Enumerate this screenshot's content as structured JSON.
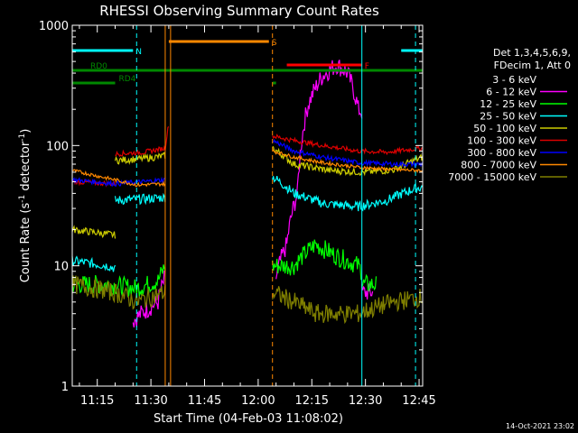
{
  "chart_data": {
    "type": "line",
    "title": "RHESSI Observing Summary Count Rates",
    "xlabel": "Start Time (04-Feb-03 11:08:02)",
    "ylabel_main": "Count Rate (s",
    "ylabel_exp1": "-1",
    "ylabel_mid": " detector",
    "ylabel_exp2": "-1",
    "ylabel_end": ")",
    "ylabel": "Count Rate (s-1 detector-1)",
    "yscale": "log",
    "ylim": [
      1,
      1000
    ],
    "xlim_minutes": [
      0,
      98
    ],
    "y_tick_labels": [
      {
        "v": 1,
        "label": "1"
      },
      {
        "v": 10,
        "label": "10"
      },
      {
        "v": 100,
        "label": "100"
      },
      {
        "v": 1000,
        "label": "1000"
      }
    ],
    "x_tick_labels": [
      {
        "m": 7,
        "label": "11:15"
      },
      {
        "m": 22,
        "label": "11:30"
      },
      {
        "m": 37,
        "label": "11:45"
      },
      {
        "m": 52,
        "label": "12:00"
      },
      {
        "m": 67,
        "label": "12:15"
      },
      {
        "m": 82,
        "label": "12:30"
      },
      {
        "m": 97,
        "label": "12:45"
      }
    ],
    "legend_header": [
      "Det 1,3,4,5,6,9,",
      "FDecim 1, Att 0"
    ],
    "legend_placement": "right",
    "series": [
      {
        "name": "3 - 6 keV",
        "color": "#000000"
      },
      {
        "name": "6 - 12 keV",
        "color": "#ff00ff"
      },
      {
        "name": "12 - 25 keV",
        "color": "#00ff00"
      },
      {
        "name": "25 - 50 keV",
        "color": "#00ffff"
      },
      {
        "name": "50 - 100 keV",
        "color": "#cccc00"
      },
      {
        "name": "100 - 300 keV",
        "color": "#dd0000"
      },
      {
        "name": "300 - 800 keV",
        "color": "#0000ff"
      },
      {
        "name": "800 - 7000 keV",
        "color": "#ff8800"
      },
      {
        "name": "7000 - 15000 keV",
        "color": "#808000"
      }
    ],
    "flags": [
      {
        "label": "N",
        "color": "#00ffff",
        "y_frac": 0.07,
        "segments": [
          [
            0,
            17
          ],
          [
            92,
            98
          ]
        ]
      },
      {
        "label": "S",
        "color": "#ff8800",
        "y_frac": 0.045,
        "segments": [
          [
            27,
            55
          ]
        ]
      },
      {
        "label": "F",
        "color": "#ff0000",
        "y_frac": 0.11,
        "segments": [
          [
            60,
            81
          ]
        ]
      },
      {
        "label": "RD0",
        "color": "#008800",
        "y_frac": 0.125,
        "segments": [
          [
            0,
            98
          ]
        ]
      },
      {
        "label": "RD4",
        "color": "#008800",
        "y_frac": 0.16,
        "segments": [
          [
            0,
            12
          ],
          [
            56,
            57
          ]
        ]
      }
    ],
    "vlines": [
      {
        "m": 18,
        "color": "#00ffff",
        "style": "dashed"
      },
      {
        "m": 26,
        "color": "#ff8800",
        "style": "solid"
      },
      {
        "m": 27.5,
        "color": "#ff8800",
        "style": "solid"
      },
      {
        "m": 56,
        "color": "#ff8800",
        "style": "dashed"
      },
      {
        "m": 81,
        "color": "#00ffff",
        "style": "solid"
      },
      {
        "m": 96,
        "color": "#00ffff",
        "style": "dashed"
      }
    ]
  },
  "footer": {
    "timestamp": "14-Oct-2021 23:02"
  }
}
